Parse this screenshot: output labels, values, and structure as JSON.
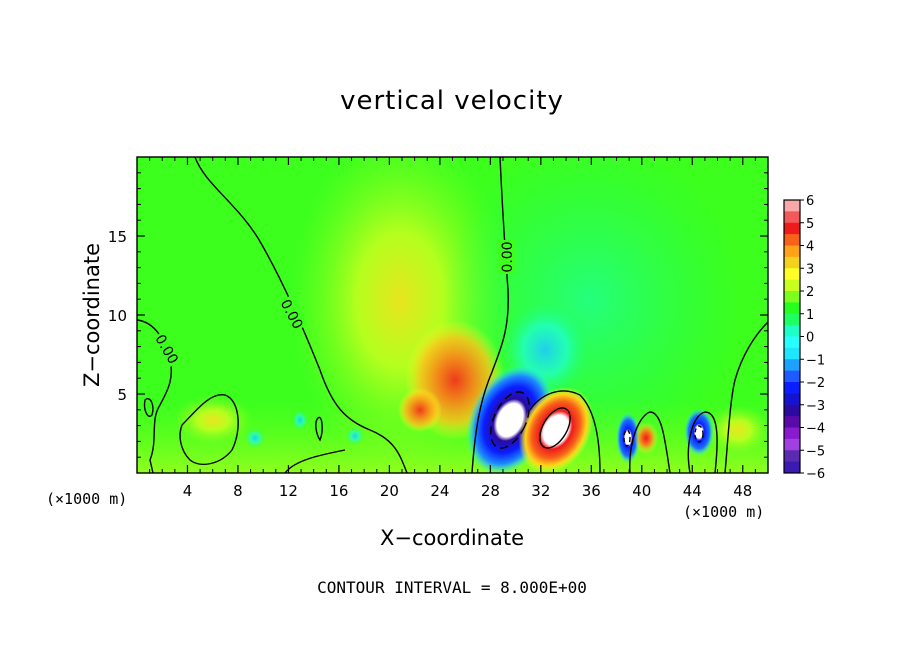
{
  "chart_data": {
    "type": "heatmap",
    "title": "vertical velocity",
    "xlabel": "X−coordinate",
    "ylabel": "Z−coordinate",
    "x_unit_label": "(×1000 m)",
    "xlim": [
      0,
      50
    ],
    "ylim": [
      0,
      20
    ],
    "x_ticks": [
      "4",
      "8",
      "12",
      "16",
      "20",
      "24",
      "28",
      "32",
      "36",
      "40",
      "44",
      "48"
    ],
    "y_ticks": [
      "5",
      "10",
      "15"
    ],
    "grid": false,
    "colorbar": {
      "placement": "right",
      "labels": [
        "6",
        "5",
        "4",
        "3",
        "2",
        "1",
        "0",
        "−1",
        "−2",
        "−3",
        "−4",
        "−5",
        "−6"
      ],
      "colors": [
        "#f8a8a8",
        "#f25a5a",
        "#ee1b1b",
        "#f7611a",
        "#ffa21a",
        "#f2d21a",
        "#ffff26",
        "#c8ff1e",
        "#7cff1e",
        "#26ff1e",
        "#1eff64",
        "#1effc8",
        "#26ffff",
        "#1ee6ff",
        "#1ea0ff",
        "#1e5aff",
        "#0a1eff",
        "#1414d0",
        "#2a0aa0",
        "#5a0aa8",
        "#8a1ad0",
        "#a040e0",
        "#5a2ab0",
        "#3a1ab0"
      ]
    },
    "zero_contour_labels": [
      "0.00",
      "0.00",
      "0.00"
    ],
    "features": [
      {
        "kind": "updraft",
        "x": 25,
        "z": 5.5,
        "w": 3
      },
      {
        "kind": "downdraft",
        "x": 29.5,
        "z": 3,
        "w": -6
      },
      {
        "kind": "updraft",
        "x": 33,
        "z": 2.5,
        "w": 6
      },
      {
        "kind": "downdraft",
        "x": 38.5,
        "z": 2.3,
        "w": -5
      },
      {
        "kind": "updraft",
        "x": 40,
        "z": 2,
        "w": 3
      },
      {
        "kind": "downdraft",
        "x": 44.5,
        "z": 2.5,
        "w": -5
      }
    ],
    "footer": "CONTOUR INTERVAL =  8.000E+00"
  }
}
